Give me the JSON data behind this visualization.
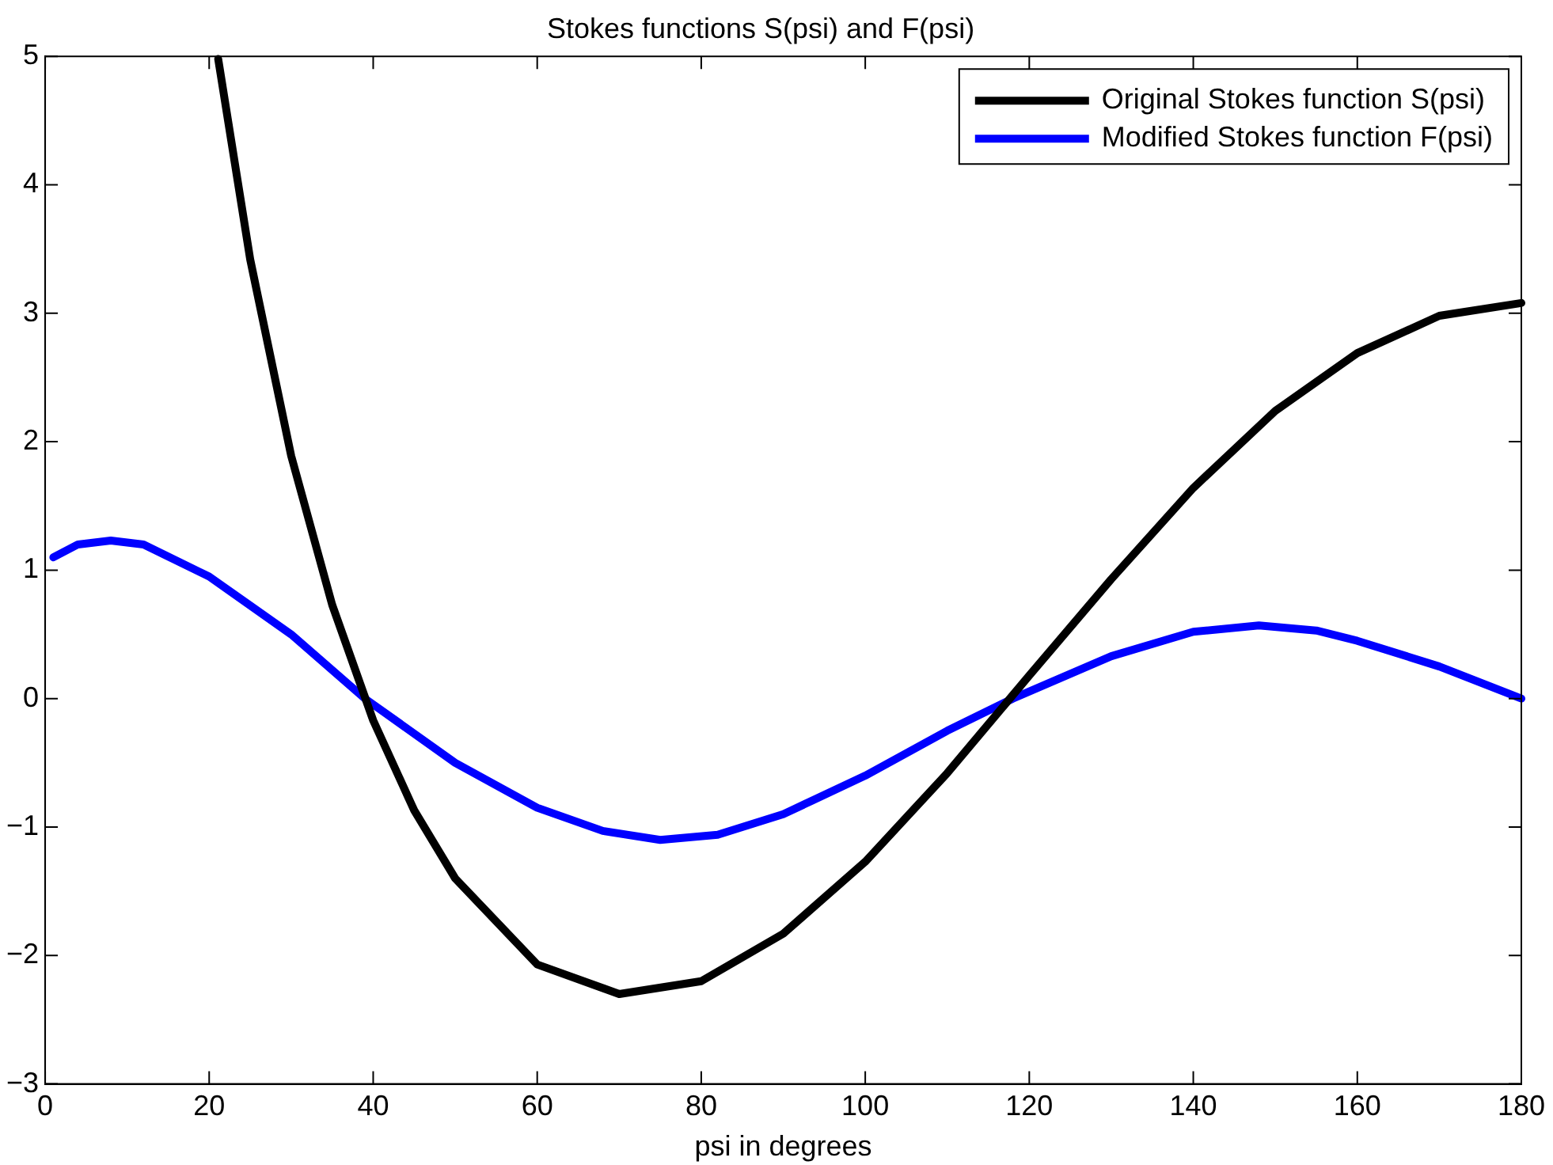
{
  "chart_data": {
    "type": "line",
    "title": "Stokes functions S(psi) and F(psi)",
    "xlabel": "psi in degrees",
    "xlim": [
      0,
      180
    ],
    "xticks": [
      0,
      20,
      40,
      60,
      80,
      100,
      120,
      140,
      160,
      180
    ],
    "ylim": [
      -3,
      5
    ],
    "yticks": [
      -3,
      -2,
      -1,
      0,
      1,
      2,
      3,
      4,
      5
    ],
    "grid": false,
    "legend": "top right",
    "marker": "none",
    "line_style": "solid",
    "series": [
      {
        "name": "Original Stokes function S(psi)",
        "color": "#000000",
        "x": [
          21.1,
          25,
          30,
          35,
          40,
          45,
          50,
          60,
          70,
          80,
          90,
          100,
          110,
          120,
          130,
          140,
          150,
          160,
          170,
          180
        ],
        "values": [
          4.98,
          3.42,
          1.89,
          0.73,
          -0.17,
          -0.87,
          -1.4,
          -2.07,
          -2.3,
          -2.2,
          -1.83,
          -1.27,
          -0.58,
          0.18,
          0.93,
          1.64,
          2.24,
          2.69,
          2.98,
          3.08
        ]
      },
      {
        "name": "Modified Stokes function F(psi)",
        "color": "#0000ff",
        "x": [
          1,
          4,
          8,
          12,
          20,
          30,
          39,
          50,
          60,
          68,
          75,
          82,
          90,
          100,
          110,
          118,
          130,
          140,
          148,
          155,
          160,
          170,
          180
        ],
        "values": [
          1.1,
          1.2,
          1.23,
          1.2,
          0.95,
          0.5,
          0,
          -0.5,
          -0.85,
          -1.03,
          -1.1,
          -1.06,
          -0.9,
          -0.6,
          -0.25,
          0,
          0.33,
          0.52,
          0.57,
          0.53,
          0.45,
          0.25,
          0
        ]
      }
    ]
  }
}
